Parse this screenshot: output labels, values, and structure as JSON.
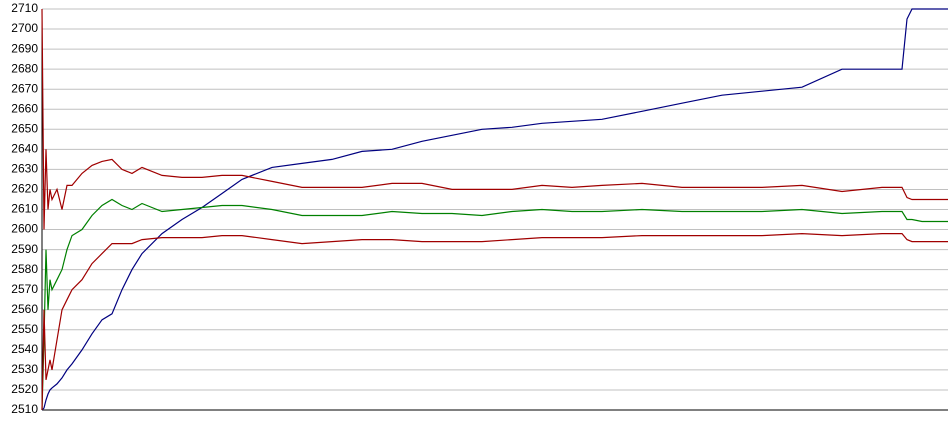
{
  "chart_data": {
    "type": "line",
    "x": [
      0,
      2,
      4,
      6,
      8,
      10,
      15,
      20,
      25,
      30,
      40,
      50,
      60,
      70,
      80,
      90,
      100,
      120,
      140,
      160,
      180,
      200,
      230,
      260,
      290,
      320,
      350,
      380,
      410,
      440,
      470,
      500,
      530,
      560,
      600,
      640,
      680,
      720,
      760,
      800,
      840,
      860,
      865,
      870,
      880,
      906
    ],
    "xlim": [
      0,
      906
    ],
    "ylim": [
      2510,
      2710
    ],
    "yticks": [
      2510,
      2520,
      2530,
      2540,
      2550,
      2560,
      2570,
      2580,
      2590,
      2600,
      2610,
      2620,
      2630,
      2640,
      2650,
      2660,
      2670,
      2680,
      2690,
      2700,
      2710
    ],
    "grid": true,
    "series": [
      {
        "color": "#000080",
        "values": [
          2510,
          2511,
          2515,
          2518,
          2520,
          2521,
          2523,
          2526,
          2530,
          2533,
          2540,
          2548,
          2555,
          2558,
          2570,
          2580,
          2588,
          2598,
          2605,
          2611,
          2618,
          2625,
          2631,
          2633,
          2635,
          2639,
          2640,
          2644,
          2647,
          2650,
          2651,
          2653,
          2654,
          2655,
          2659,
          2663,
          2667,
          2669,
          2671,
          2680,
          2680,
          2680,
          2705,
          2710,
          2710,
          2710
        ]
      },
      {
        "color": "#008000",
        "values": [
          2510,
          2545,
          2590,
          2560,
          2575,
          2570,
          2575,
          2580,
          2590,
          2597,
          2600,
          2607,
          2612,
          2615,
          2612,
          2610,
          2613,
          2609,
          2610,
          2611,
          2612,
          2612,
          2610,
          2607,
          2607,
          2607,
          2609,
          2608,
          2608,
          2607,
          2609,
          2610,
          2609,
          2609,
          2610,
          2609,
          2609,
          2609,
          2610,
          2608,
          2609,
          2609,
          2605,
          2605,
          2604,
          2604
        ]
      },
      {
        "color": "#a00000",
        "values": [
          2710,
          2600,
          2640,
          2610,
          2620,
          2615,
          2620,
          2610,
          2622,
          2622,
          2628,
          2632,
          2634,
          2635,
          2630,
          2628,
          2631,
          2627,
          2626,
          2626,
          2627,
          2627,
          2624,
          2621,
          2621,
          2621,
          2623,
          2623,
          2620,
          2620,
          2620,
          2622,
          2621,
          2622,
          2623,
          2621,
          2621,
          2621,
          2622,
          2619,
          2621,
          2621,
          2616,
          2615,
          2615,
          2615
        ]
      },
      {
        "color": "#a00000",
        "values": [
          2510,
          2560,
          2525,
          2530,
          2535,
          2530,
          2545,
          2560,
          2565,
          2570,
          2575,
          2583,
          2588,
          2593,
          2593,
          2593,
          2595,
          2596,
          2596,
          2596,
          2597,
          2597,
          2595,
          2593,
          2594,
          2595,
          2595,
          2594,
          2594,
          2594,
          2595,
          2596,
          2596,
          2596,
          2597,
          2597,
          2597,
          2597,
          2598,
          2597,
          2598,
          2598,
          2595,
          2594,
          2594,
          2594
        ]
      }
    ]
  }
}
